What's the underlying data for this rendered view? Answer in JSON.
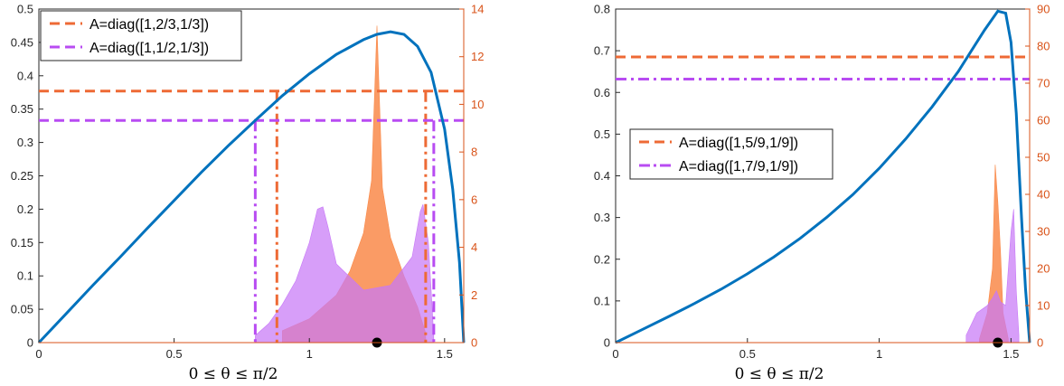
{
  "colors": {
    "curve": "#0072BD",
    "orange": "#EE6A35",
    "purple": "#B84CF2",
    "orange_fill": "#F98A4A",
    "purple_fill": "#C778F7",
    "right_axis": "#D95319"
  },
  "chart_data": [
    {
      "type": "line",
      "xlabel": "0 ≤ θ ≤ π/2",
      "xlim": [
        0,
        1.5708
      ],
      "ylim_left": [
        0,
        0.5
      ],
      "ylim_right": [
        0,
        14
      ],
      "x_ticks": [
        "0",
        "0.5",
        "1",
        "1.5"
      ],
      "x_tick_values": [
        0,
        0.5,
        1,
        1.5
      ],
      "y_left_ticks": [
        "0",
        "0.05",
        "0.1",
        "0.15",
        "0.2",
        "0.25",
        "0.3",
        "0.35",
        "0.4",
        "0.45",
        "0.5"
      ],
      "y_left_tick_values": [
        0,
        0.05,
        0.1,
        0.15,
        0.2,
        0.25,
        0.3,
        0.35,
        0.4,
        0.45,
        0.5
      ],
      "y_right_ticks": [
        "0",
        "2",
        "4",
        "6",
        "8",
        "10",
        "12",
        "14"
      ],
      "y_right_tick_values": [
        0,
        2,
        4,
        6,
        8,
        10,
        12,
        14
      ],
      "legend_position": "top-left",
      "curve": {
        "x": [
          0,
          0.1,
          0.2,
          0.3,
          0.4,
          0.5,
          0.6,
          0.7,
          0.8,
          0.9,
          1.0,
          1.1,
          1.2,
          1.25,
          1.3,
          1.35,
          1.4,
          1.45,
          1.5,
          1.53,
          1.555,
          1.5708
        ],
        "y": [
          0,
          0.043,
          0.086,
          0.128,
          0.171,
          0.213,
          0.255,
          0.295,
          0.333,
          0.37,
          0.403,
          0.432,
          0.454,
          0.462,
          0.466,
          0.462,
          0.444,
          0.405,
          0.32,
          0.23,
          0.12,
          0
        ]
      },
      "series": [
        {
          "name": "A=diag([1,2/3,1/3])",
          "style": "dashed",
          "color": "#EE6A35",
          "level": 0.377,
          "vlines": [
            0.88,
            1.43
          ]
        },
        {
          "name": "A=diag([1,1/2,1/3])",
          "style": "dashed",
          "color": "#B84CF2",
          "level": 0.333,
          "vlines": [
            0.8,
            1.46
          ]
        }
      ],
      "histograms": [
        {
          "color": "#F98A4A",
          "x": [
            0.9,
            1.0,
            1.1,
            1.15,
            1.2,
            1.23,
            1.25,
            1.27,
            1.3,
            1.35,
            1.4,
            1.43
          ],
          "y": [
            0.5,
            1.0,
            2.0,
            3.0,
            4.6,
            6.8,
            13.3,
            6.5,
            4.4,
            2.8,
            1.5,
            0.4
          ]
        },
        {
          "color": "#C778F7",
          "x": [
            0.8,
            0.85,
            0.9,
            0.95,
            1.0,
            1.03,
            1.05,
            1.07,
            1.1,
            1.2,
            1.3,
            1.38,
            1.41,
            1.42,
            1.44,
            1.46
          ],
          "y": [
            0.3,
            0.8,
            1.6,
            2.6,
            4.2,
            5.6,
            5.7,
            4.8,
            3.3,
            2.2,
            2.4,
            3.6,
            5.5,
            5.8,
            4.2,
            0.3
          ]
        }
      ],
      "marker": {
        "x": 1.25,
        "y": 0
      }
    },
    {
      "type": "line",
      "xlabel": "0 ≤ θ ≤ π/2",
      "xlim": [
        0,
        1.5708
      ],
      "ylim_left": [
        0,
        0.8
      ],
      "ylim_right": [
        0,
        90
      ],
      "x_ticks": [
        "0",
        "0.5",
        "1",
        "1.5"
      ],
      "x_tick_values": [
        0,
        0.5,
        1,
        1.5
      ],
      "y_left_ticks": [
        "0",
        "0.1",
        "0.2",
        "0.3",
        "0.4",
        "0.5",
        "0.6",
        "0.7",
        "0.8"
      ],
      "y_left_tick_values": [
        0,
        0.1,
        0.2,
        0.3,
        0.4,
        0.5,
        0.6,
        0.7,
        0.8
      ],
      "y_right_ticks": [
        "0",
        "10",
        "20",
        "30",
        "40",
        "50",
        "60",
        "70",
        "80",
        "90"
      ],
      "y_right_tick_values": [
        0,
        10,
        20,
        30,
        40,
        50,
        60,
        70,
        80,
        90
      ],
      "legend_position": "center-right",
      "curve": {
        "x": [
          0,
          0.1,
          0.2,
          0.3,
          0.4,
          0.5,
          0.6,
          0.7,
          0.8,
          0.9,
          1.0,
          1.1,
          1.2,
          1.3,
          1.35,
          1.4,
          1.45,
          1.48,
          1.5,
          1.52,
          1.54,
          1.555,
          1.5708
        ],
        "y": [
          0,
          0.031,
          0.062,
          0.094,
          0.128,
          0.165,
          0.205,
          0.25,
          0.3,
          0.355,
          0.418,
          0.488,
          0.565,
          0.65,
          0.7,
          0.75,
          0.795,
          0.79,
          0.72,
          0.55,
          0.3,
          0.13,
          0
        ]
      },
      "series": [
        {
          "name": "A=diag([1,5/9,1/9])",
          "style": "dashed",
          "color": "#EE6A35",
          "level": 0.685
        },
        {
          "name": "A=diag([1,7/9,1/9])",
          "style": "dashdot",
          "color": "#B84CF2",
          "level": 0.632
        }
      ],
      "histograms": [
        {
          "color": "#F98A4A",
          "x": [
            1.38,
            1.41,
            1.43,
            1.44,
            1.45,
            1.46,
            1.47,
            1.49
          ],
          "y": [
            1,
            8,
            20,
            48,
            38,
            25,
            8,
            1
          ]
        },
        {
          "color": "#C778F7",
          "x": [
            1.33,
            1.37,
            1.41,
            1.43,
            1.445,
            1.46,
            1.48,
            1.5,
            1.51,
            1.52,
            1.53
          ],
          "y": [
            2,
            8,
            10,
            12,
            14,
            11,
            10,
            30,
            36,
            14,
            2
          ]
        }
      ],
      "marker": {
        "x": 1.45,
        "y": 0
      }
    }
  ]
}
